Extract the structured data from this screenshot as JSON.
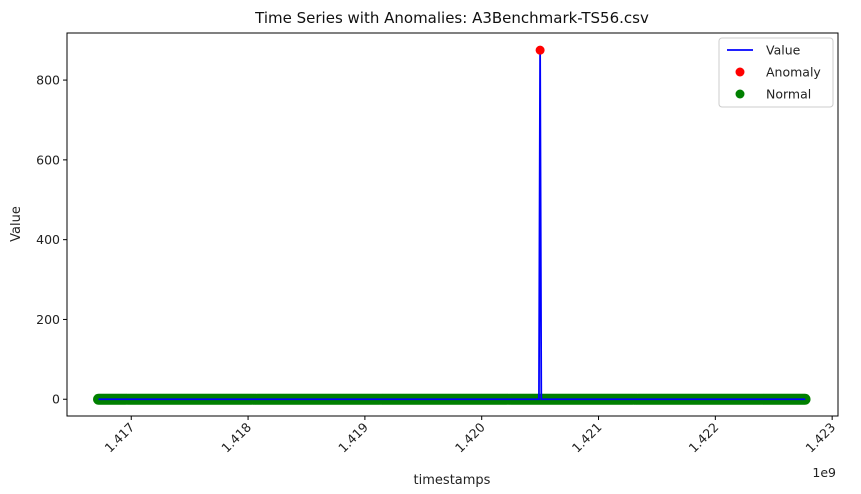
{
  "chart_data": {
    "type": "line",
    "title": "Time Series with Anomalies: A3Benchmark-TS56.csv",
    "xlabel": "timestamps",
    "ylabel": "Value",
    "x_offset_label": "1e9",
    "xlim": [
      1.41645,
      1.42305
    ],
    "ylim": [
      -42,
      918
    ],
    "x_ticks": [
      1.417,
      1.418,
      1.419,
      1.42,
      1.421,
      1.422,
      1.423
    ],
    "x_tick_labels": [
      "1.417",
      "1.418",
      "1.419",
      "1.420",
      "1.421",
      "1.422",
      "1.423"
    ],
    "y_ticks": [
      0,
      200,
      400,
      600,
      800
    ],
    "y_tick_labels": [
      "0",
      "200",
      "400",
      "600",
      "800"
    ],
    "x_range": [
      1.41672,
      1.42277
    ],
    "series": [
      {
        "name": "Value",
        "kind": "line",
        "color": "#0000ff",
        "points": [
          [
            1.41672,
            0
          ],
          [
            1.42049,
            0
          ],
          [
            1.4205,
            875
          ],
          [
            1.42051,
            0
          ],
          [
            1.42277,
            0
          ]
        ]
      },
      {
        "name": "Anomaly",
        "kind": "scatter",
        "color": "#ff0000",
        "points": [
          [
            1.4205,
            875
          ]
        ]
      },
      {
        "name": "Normal",
        "kind": "scatter",
        "color": "#008000",
        "points_range": [
          1.41672,
          1.42277
        ],
        "value": 0
      }
    ],
    "legend": {
      "position": "top-right",
      "entries": [
        {
          "label": "Value",
          "marker": "line",
          "color": "#0000ff"
        },
        {
          "label": "Anomaly",
          "marker": "dot",
          "color": "#ff0000"
        },
        {
          "label": "Normal",
          "marker": "dot",
          "color": "#008000"
        }
      ]
    },
    "grid": false
  }
}
